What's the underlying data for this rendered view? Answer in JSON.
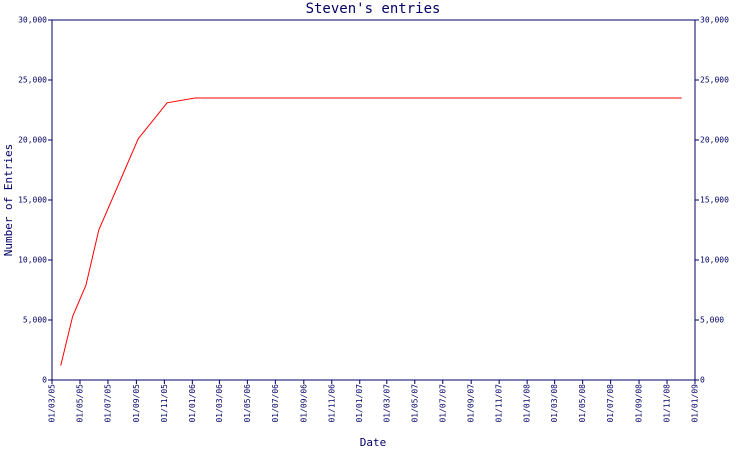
{
  "chart_data": {
    "type": "line",
    "title": "Steven's entries",
    "x_label": "Date",
    "y_label": "Number of Entries",
    "color": "#ff0000",
    "axis_color": "#000066",
    "x": [
      "2005-03-20",
      "2005-04-15",
      "2005-05-14",
      "2005-06-11",
      "2005-09-05",
      "2005-11-07",
      "2006-01-07",
      "2008-12-03"
    ],
    "values": [
      1200,
      5300,
      7900,
      12500,
      20100,
      23100,
      23500,
      23500
    ],
    "xlim": [
      "2005-03-01",
      "2009-01-01"
    ],
    "xticks": [
      {
        "value": "2005-03-01",
        "label": "01/03/05"
      },
      {
        "value": "2005-05-01",
        "label": "01/05/05"
      },
      {
        "value": "2005-07-01",
        "label": "01/07/05"
      },
      {
        "value": "2005-09-01",
        "label": "01/09/05"
      },
      {
        "value": "2005-11-01",
        "label": "01/11/05"
      },
      {
        "value": "2006-01-01",
        "label": "01/01/06"
      },
      {
        "value": "2006-03-01",
        "label": "01/03/06"
      },
      {
        "value": "2006-05-01",
        "label": "01/05/06"
      },
      {
        "value": "2006-07-01",
        "label": "01/07/06"
      },
      {
        "value": "2006-09-01",
        "label": "01/09/06"
      },
      {
        "value": "2006-11-01",
        "label": "01/11/06"
      },
      {
        "value": "2007-01-01",
        "label": "01/01/07"
      },
      {
        "value": "2007-03-01",
        "label": "01/03/07"
      },
      {
        "value": "2007-05-01",
        "label": "01/05/07"
      },
      {
        "value": "2007-07-01",
        "label": "01/07/07"
      },
      {
        "value": "2007-09-01",
        "label": "01/09/07"
      },
      {
        "value": "2007-11-01",
        "label": "01/11/07"
      },
      {
        "value": "2008-01-01",
        "label": "01/01/08"
      },
      {
        "value": "2008-03-01",
        "label": "01/03/08"
      },
      {
        "value": "2008-05-01",
        "label": "01/05/08"
      },
      {
        "value": "2008-07-01",
        "label": "01/07/08"
      },
      {
        "value": "2008-09-01",
        "label": "01/09/08"
      },
      {
        "value": "2008-11-01",
        "label": "01/11/08"
      },
      {
        "value": "2009-01-01",
        "label": "01/01/09"
      }
    ],
    "ylim": [
      0,
      30000
    ],
    "yticks": [
      0,
      {
        "value": 5000,
        "label": "5,000"
      },
      {
        "value": 10000,
        "label": "10,000"
      },
      {
        "value": 15000,
        "label": "15,000"
      },
      {
        "value": 20000,
        "label": "20,000"
      },
      {
        "value": 25000,
        "label": "25,000"
      },
      {
        "value": 30000,
        "label": "30,000"
      }
    ]
  }
}
